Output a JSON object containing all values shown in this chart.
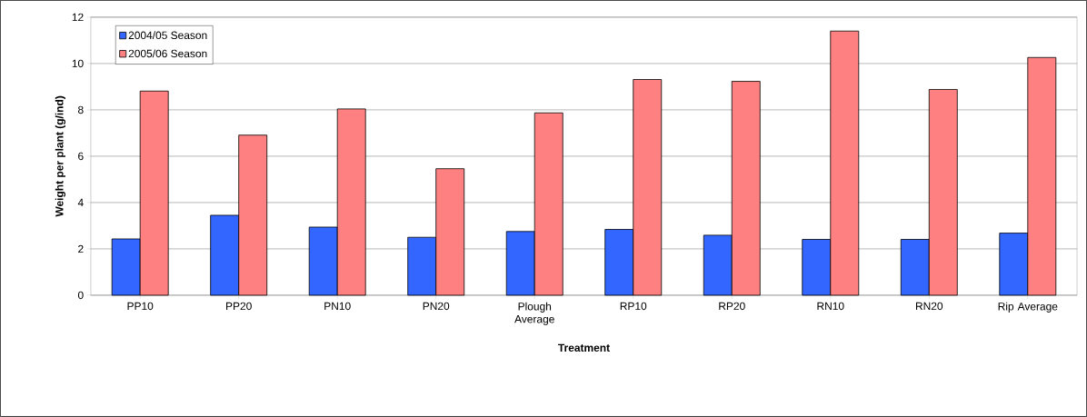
{
  "chart_data": {
    "type": "bar",
    "xlabel": "Treatment",
    "ylabel": "Weight per plant (g/ind)",
    "categories": [
      "PP10",
      "PP20",
      "PN10",
      "PN20",
      "Plough Average",
      "RP10",
      "RP20",
      "RN10",
      "RN20",
      "Rip Average"
    ],
    "series": [
      {
        "name": "2004/05 Season",
        "color": "#3366ff",
        "values": [
          2.43,
          3.45,
          2.94,
          2.5,
          2.75,
          2.84,
          2.59,
          2.41,
          2.41,
          2.68
        ]
      },
      {
        "name": "2005/06 Season",
        "color": "#ff8080",
        "values": [
          8.81,
          6.91,
          8.04,
          5.46,
          7.87,
          9.31,
          9.23,
          11.4,
          8.88,
          10.26
        ]
      }
    ],
    "ylim": [
      0,
      12
    ],
    "yticks": [
      0,
      2,
      4,
      6,
      8,
      10,
      12
    ],
    "grid": "y",
    "legend": "top left"
  }
}
